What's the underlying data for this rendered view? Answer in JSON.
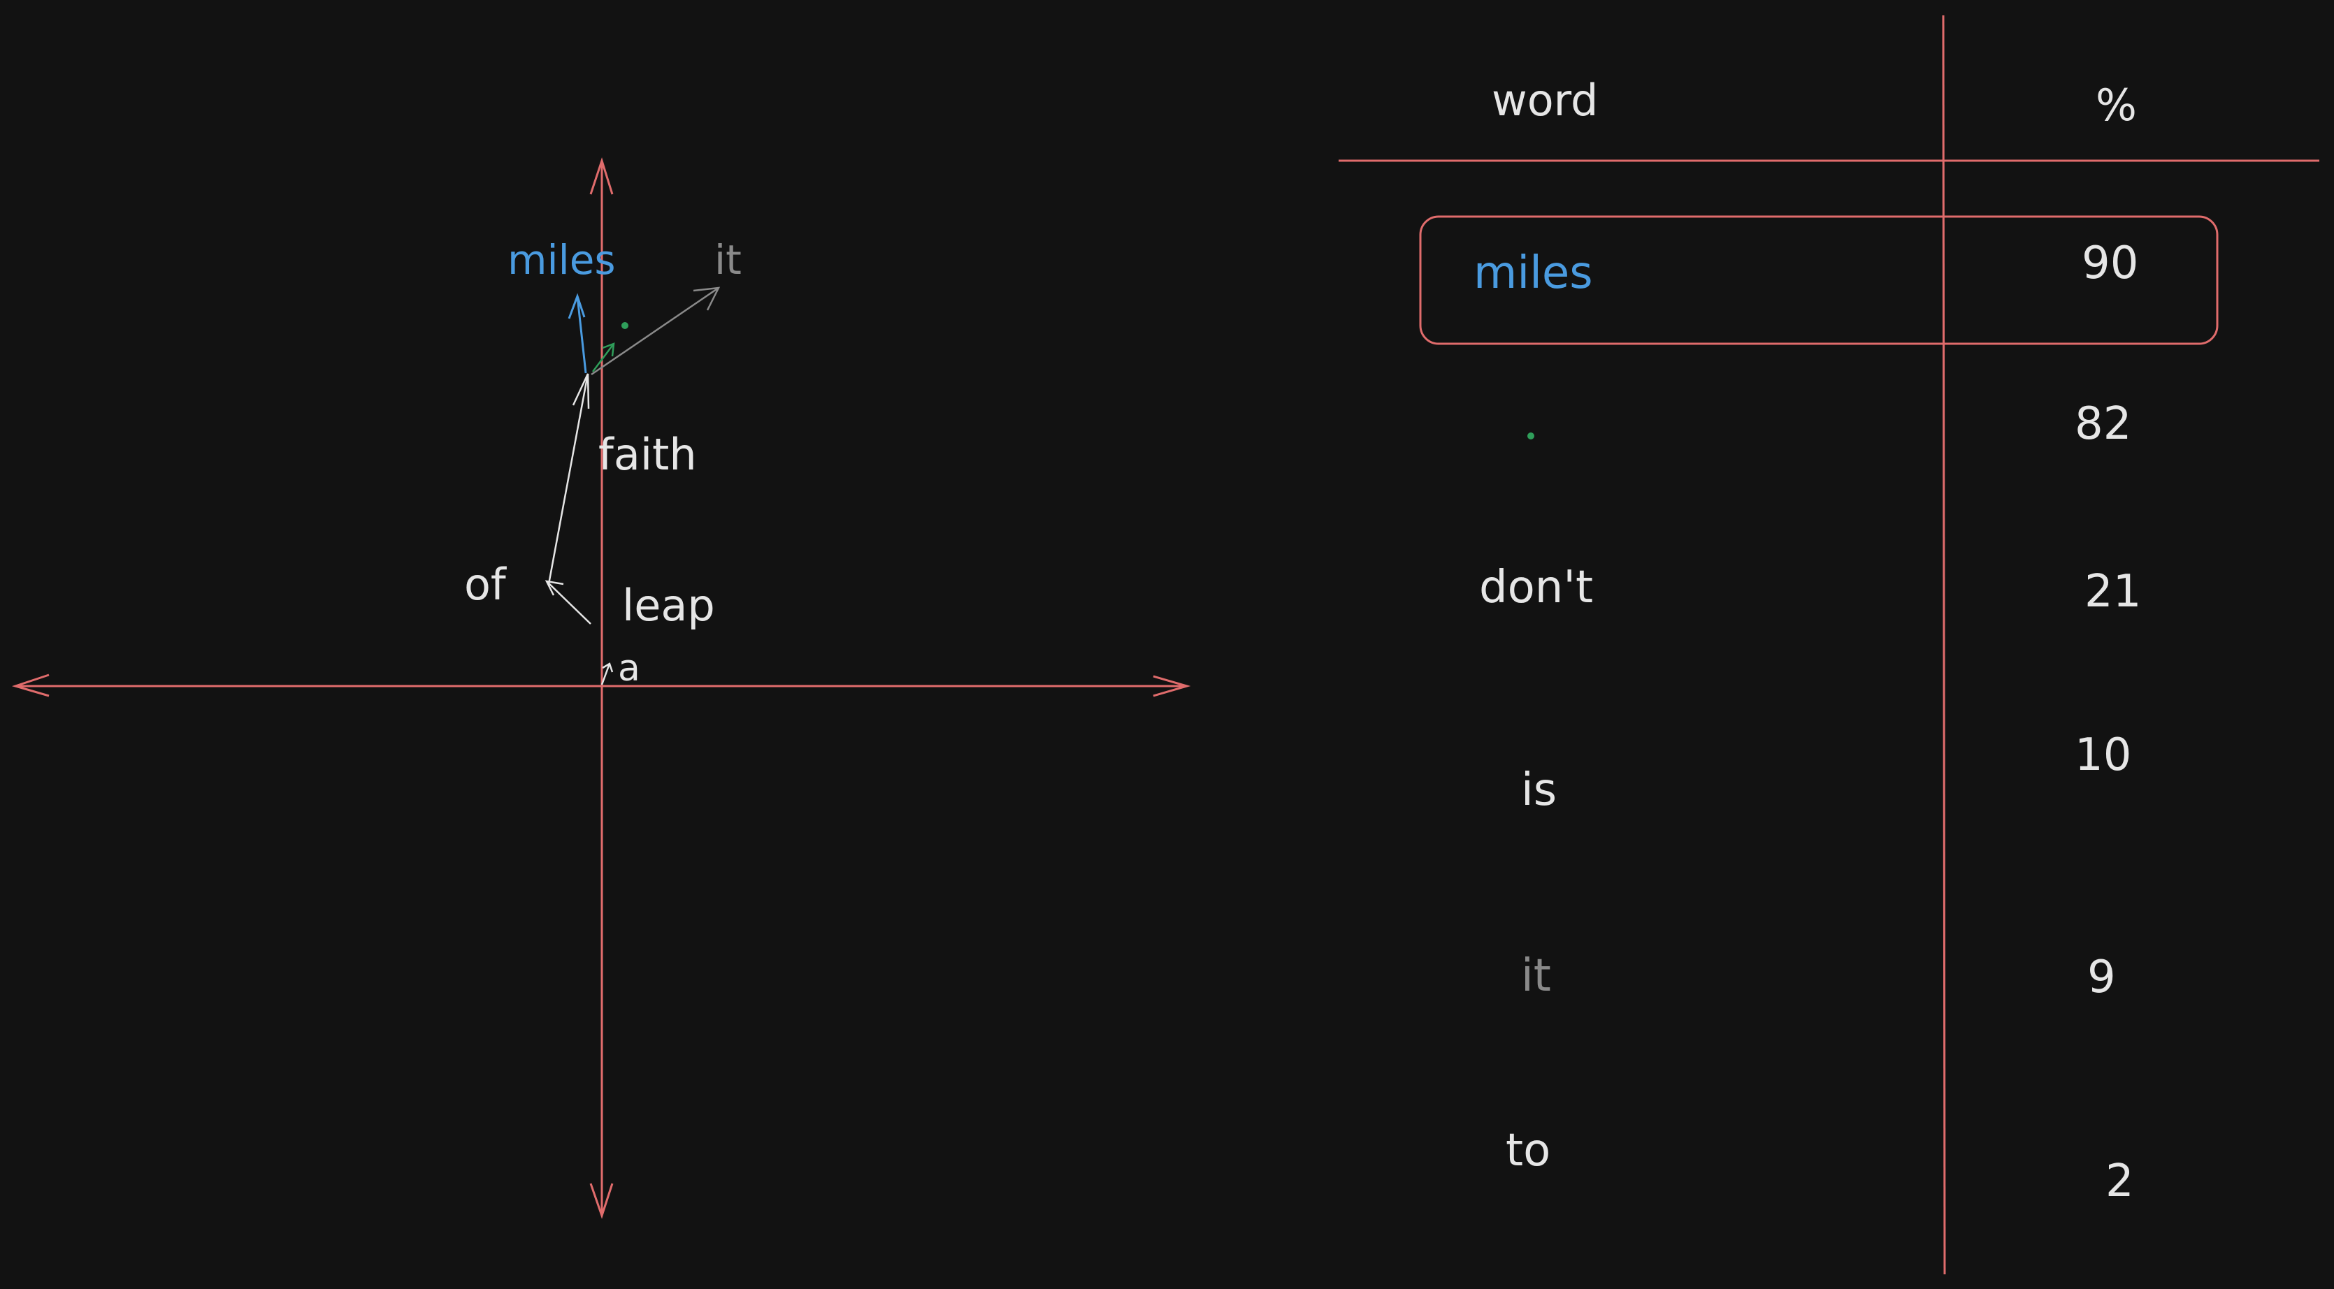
{
  "diagram": {
    "words": {
      "miles": "miles",
      "it": "it",
      "faith": "faith",
      "of": "of",
      "leap": "leap",
      "a": "a"
    }
  },
  "table": {
    "header": {
      "word": "word",
      "percent": "%"
    },
    "rows": [
      {
        "word": "miles",
        "percent": "90",
        "highlighted": true,
        "color": "#4a9be0"
      },
      {
        "word": "·",
        "percent": "82",
        "highlighted": false,
        "color": "#2f9e5a"
      },
      {
        "word": "don't",
        "percent": "21",
        "highlighted": false,
        "color": "#e6e6e6"
      },
      {
        "word": "is",
        "percent": "10",
        "highlighted": false,
        "color": "#e6e6e6"
      },
      {
        "word": "it",
        "percent": "9",
        "highlighted": false,
        "color": "#8a8a8a"
      },
      {
        "word": "to",
        "percent": "2",
        "highlighted": false,
        "color": "#e6e6e6"
      }
    ]
  },
  "colors": {
    "background": "#121212",
    "axis": "#e06c6c",
    "text": "#e6e6e6",
    "blue": "#4a9be0",
    "gray": "#8a8a8a",
    "green": "#2f9e5a"
  }
}
